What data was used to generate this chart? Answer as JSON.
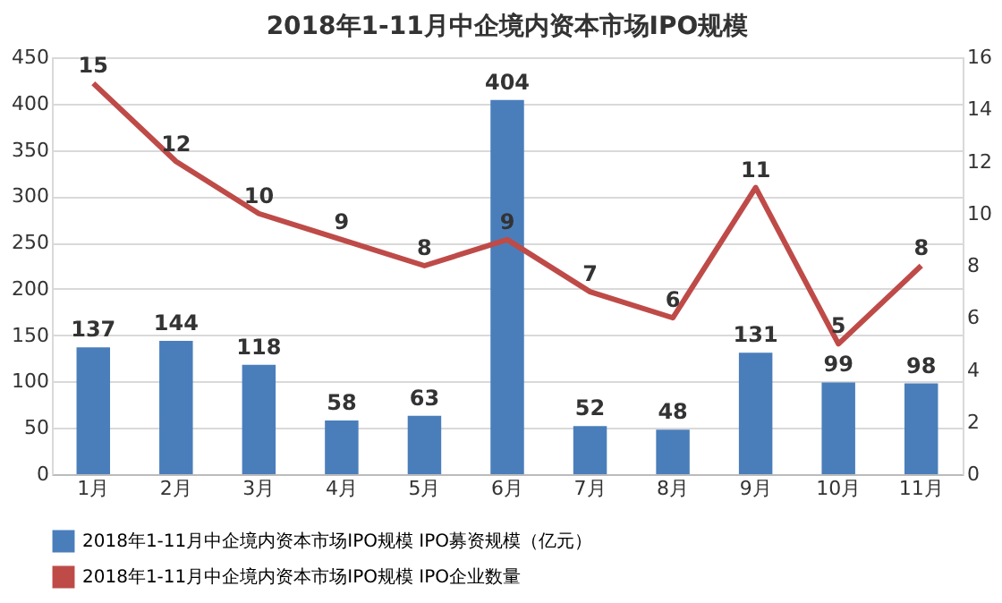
{
  "chart_data": {
    "type": "bar",
    "title": "2018年1-11月中企境内资本市场IPO规模",
    "categories": [
      "1月",
      "2月",
      "3月",
      "4月",
      "5月",
      "6月",
      "7月",
      "8月",
      "9月",
      "10月",
      "11月"
    ],
    "series": [
      {
        "name": "2018年1-11月中企境内资本市场IPO规模 IPO募资规模（亿元）",
        "color": "#4a7ebb",
        "values": [
          137,
          144,
          118,
          58,
          63,
          404,
          52,
          48,
          131,
          99,
          98
        ]
      },
      {
        "name": "2018年1-11月中企境内资本市场IPO规模 IPO企业数量",
        "color": "#be4b48",
        "type": "line",
        "axis": "y2",
        "line_style": "solid",
        "values": [
          15,
          12,
          10,
          9,
          8,
          9,
          7,
          6,
          11,
          5,
          8
        ]
      }
    ],
    "ylim": [
      0,
      450
    ],
    "yticks": [
      0,
      50,
      100,
      150,
      200,
      250,
      300,
      350,
      400,
      450
    ],
    "y2lim": [
      0,
      16
    ],
    "y2ticks": [
      0,
      2,
      4,
      6,
      8,
      10,
      12,
      14,
      16
    ],
    "grid": "y",
    "legend": "bottom",
    "data_labels": true
  }
}
